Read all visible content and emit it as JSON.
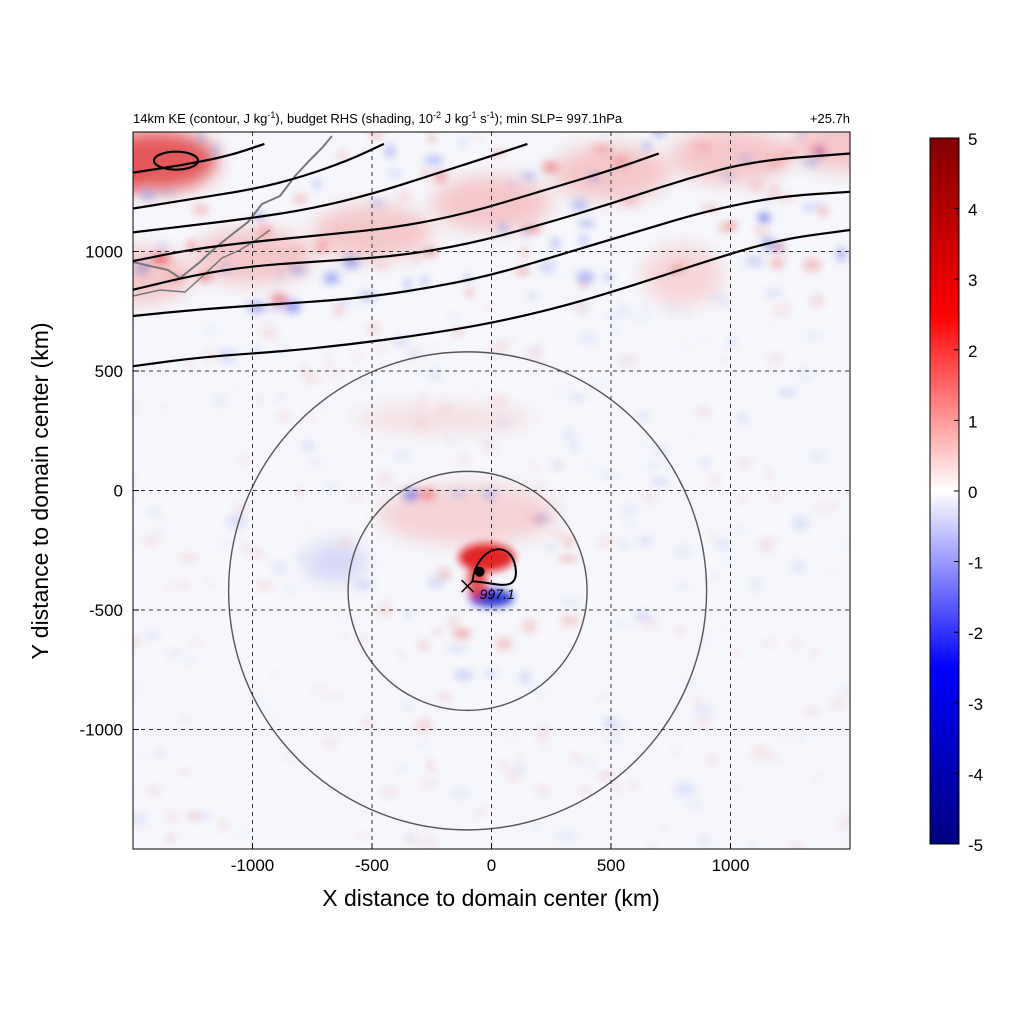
{
  "chart_data": {
    "type": "heatmap",
    "title_left_parts": [
      "14km KE (contour, J kg",
      "-1",
      "), budget RHS (shading, 10",
      "-2",
      " J kg",
      "-1",
      " s",
      "-1",
      "); min SLP= 997.1hPa"
    ],
    "title_right": "+25.7h",
    "xlabel": "X distance to domain center (km)",
    "ylabel": "Y distance to domain center (km)",
    "xlim": [
      -1500,
      1500
    ],
    "ylim": [
      -1500,
      1500
    ],
    "x_ticks": [
      -1000,
      -500,
      0,
      500,
      1000
    ],
    "y_ticks": [
      1000,
      500,
      0,
      -500,
      -1000
    ],
    "grid": true,
    "colorbar": {
      "min": -5,
      "max": 5,
      "ticks": [
        5,
        4,
        3,
        2,
        1,
        0,
        -1,
        -2,
        -3,
        -4,
        -5
      ],
      "colors": [
        "#000080",
        "#0000ff",
        "#ffffff",
        "#ff0000",
        "#800000"
      ]
    },
    "range_rings": {
      "center": [
        -100,
        -420
      ],
      "radii_km": [
        500,
        1000
      ]
    },
    "storm_center": {
      "x": -100,
      "y": -400,
      "label": "997.1"
    },
    "ke_contours": [
      [
        [
          -1500,
          520
        ],
        [
          -1200,
          560
        ],
        [
          -900,
          580
        ],
        [
          -600,
          610
        ],
        [
          -300,
          650
        ],
        [
          0,
          700
        ],
        [
          300,
          770
        ],
        [
          600,
          860
        ],
        [
          900,
          960
        ],
        [
          1200,
          1050
        ],
        [
          1500,
          1090
        ]
      ],
      [
        [
          -1500,
          730
        ],
        [
          -1200,
          760
        ],
        [
          -900,
          780
        ],
        [
          -600,
          800
        ],
        [
          -300,
          840
        ],
        [
          0,
          900
        ],
        [
          300,
          990
        ],
        [
          600,
          1080
        ],
        [
          900,
          1170
        ],
        [
          1200,
          1230
        ],
        [
          1500,
          1250
        ]
      ],
      [
        [
          -1500,
          840
        ],
        [
          -1250,
          900
        ],
        [
          -1000,
          940
        ],
        [
          -700,
          960
        ],
        [
          -400,
          980
        ],
        [
          -100,
          1030
        ],
        [
          200,
          1110
        ],
        [
          500,
          1200
        ],
        [
          800,
          1300
        ],
        [
          1100,
          1380
        ],
        [
          1500,
          1410
        ]
      ],
      [
        [
          -1500,
          960
        ],
        [
          -1250,
          1010
        ],
        [
          -1000,
          1040
        ],
        [
          -700,
          1070
        ],
        [
          -400,
          1100
        ],
        [
          -100,
          1160
        ],
        [
          200,
          1250
        ],
        [
          500,
          1340
        ],
        [
          700,
          1410
        ]
      ],
      [
        [
          -1500,
          1080
        ],
        [
          -1250,
          1110
        ],
        [
          -1000,
          1140
        ],
        [
          -750,
          1180
        ],
        [
          -500,
          1240
        ],
        [
          -250,
          1320
        ],
        [
          0,
          1400
        ],
        [
          150,
          1450
        ]
      ],
      [
        [
          -1500,
          1180
        ],
        [
          -1250,
          1220
        ],
        [
          -1000,
          1260
        ],
        [
          -800,
          1310
        ],
        [
          -600,
          1380
        ],
        [
          -450,
          1450
        ]
      ],
      [
        [
          -1500,
          1330
        ],
        [
          -1300,
          1360
        ],
        [
          -1100,
          1400
        ],
        [
          -950,
          1450
        ]
      ]
    ]
  }
}
